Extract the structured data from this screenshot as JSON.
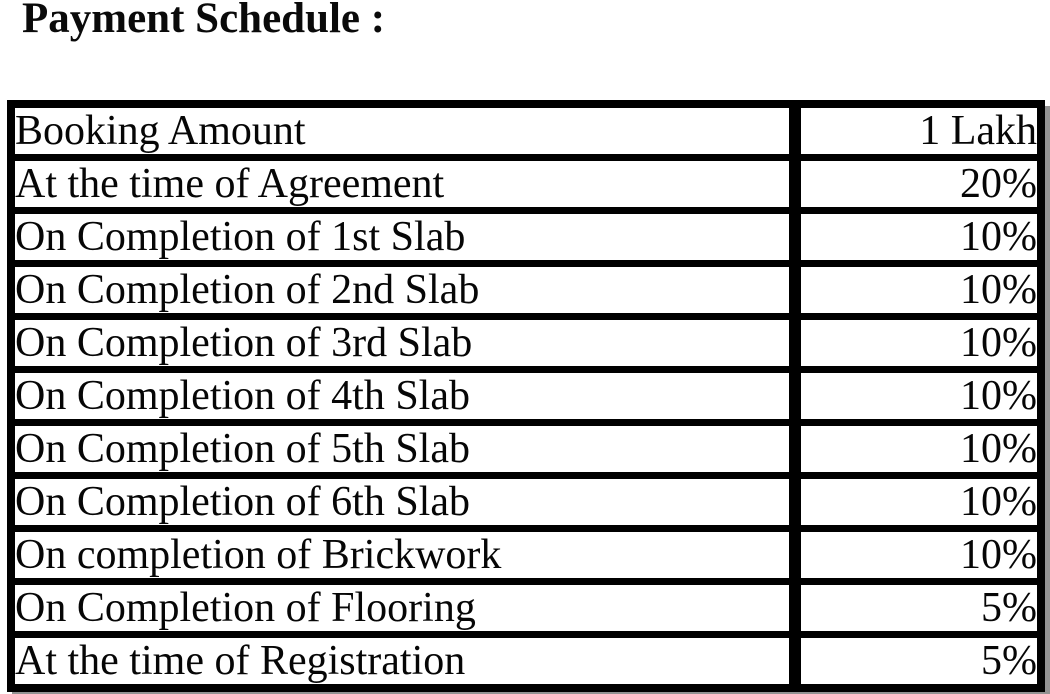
{
  "document": {
    "heading": "Payment Schedule :"
  },
  "table": {
    "rows": [
      {
        "label": "Booking Amount",
        "value": "1 Lakh"
      },
      {
        "label": "At the time of Agreement",
        "value": "20%"
      },
      {
        "label": "On Completion of 1st Slab",
        "value": "10%"
      },
      {
        "label": "On Completion of 2nd Slab",
        "value": "10%"
      },
      {
        "label": "On Completion of 3rd Slab",
        "value": "10%"
      },
      {
        "label": "On Completion of 4th Slab",
        "value": "10%"
      },
      {
        "label": "On Completion of 5th Slab",
        "value": "10%"
      },
      {
        "label": "On Completion of 6th Slab",
        "value": "10%"
      },
      {
        "label": "On completion of Brickwork",
        "value": "10%"
      },
      {
        "label": "On Completion of Flooring",
        "value": "5%"
      },
      {
        "label": "At the time of Registration",
        "value": "5%"
      }
    ]
  },
  "colors": {
    "text": "#060606",
    "border": "#000000",
    "background": "#ffffff",
    "shadow": "#929292"
  }
}
